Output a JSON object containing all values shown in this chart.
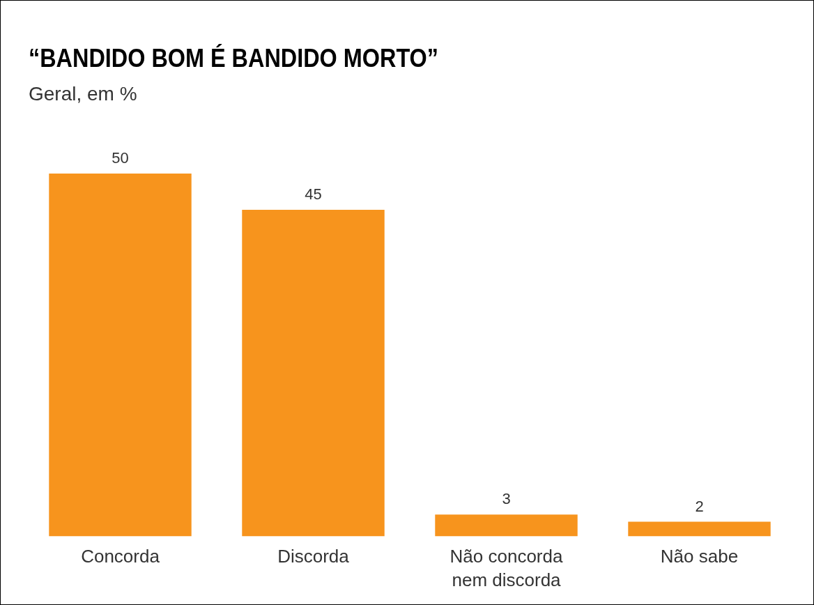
{
  "chart_data": {
    "type": "bar",
    "title": "“BANDIDO BOM É BANDIDO MORTO”",
    "subtitle": "Geral, em %",
    "categories": [
      "Concorda",
      "Discorda",
      "Não concorda nem discorda",
      "Não sabe"
    ],
    "values": [
      50,
      45,
      3,
      2
    ],
    "color": "#f7941d",
    "data_labels": true,
    "relative": false,
    "grid": false,
    "legend": false
  }
}
